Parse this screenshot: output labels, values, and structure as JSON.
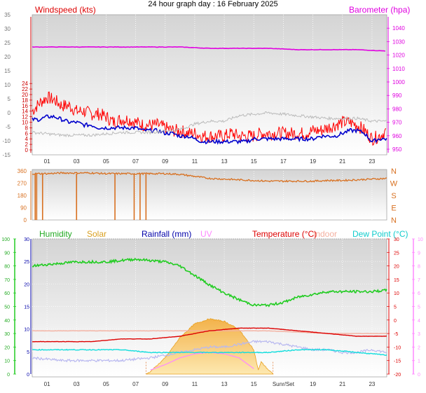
{
  "page_title": "24 hour graph day : 16 February 2025",
  "colors": {
    "wind_gust": "#ff0000",
    "wind_avg": "#0000cc",
    "barometer": "#e000e0",
    "gray_series": "#bbbbbb",
    "direction": "#d87020",
    "humidity": "#22cc22",
    "solar": "#e8a020",
    "rainfall": "#0000aa",
    "uv": "#ff88ff",
    "temperature": "#dd0000",
    "indoor": "#f4b0a0",
    "dewpoint": "#11dddd",
    "lavender": "#b8b8f0",
    "axis_text": "#000000"
  },
  "chart_data": [
    {
      "type": "line",
      "title": "",
      "y_left_label": "Windspeed (kts)",
      "y_right_label": "Barometer (hpa)",
      "x_ticks": [
        "01",
        "03",
        "05",
        "07",
        "09",
        "11",
        "13",
        "15",
        "17",
        "19",
        "21",
        "23"
      ],
      "x_range_hours": [
        0,
        24
      ],
      "y_left_ticks": [
        "-15",
        "-10",
        "-5",
        "0",
        "5",
        "10",
        "15",
        "20",
        "25",
        "30",
        "35"
      ],
      "y_left_inner_ticks": [
        "0",
        "2",
        "4",
        "6",
        "8",
        "10",
        "12",
        "14",
        "16",
        "18",
        "20",
        "22",
        "24"
      ],
      "y_right_ticks": [
        "950",
        "960",
        "970",
        "980",
        "990",
        "1000",
        "1010",
        "1020",
        "1030",
        "1040"
      ],
      "series": [
        {
          "name": "Windspeed (kts)",
          "kind": "gust",
          "x": [
            0,
            0.5,
            1,
            1.5,
            2,
            2.5,
            3,
            3.5,
            4,
            4.5,
            5,
            5.5,
            6,
            6.5,
            7,
            7.5,
            8,
            8.5,
            9,
            9.5,
            10,
            10.5,
            11,
            11.5,
            12,
            12.5,
            13,
            13.5,
            14,
            14.5,
            15,
            15.5,
            16,
            16.5,
            17,
            17.5,
            18,
            18.5,
            19,
            19.5,
            20,
            20.5,
            21,
            21.5,
            22,
            22.5,
            23,
            23.5,
            24
          ],
          "y": [
            14,
            17,
            19,
            18,
            16,
            16,
            14,
            14,
            13,
            13,
            12,
            10,
            11,
            11,
            10,
            9,
            9,
            9,
            8,
            7,
            7,
            6,
            6,
            5,
            5,
            5,
            5,
            6,
            5,
            5,
            5,
            6,
            6,
            6,
            6,
            6,
            6,
            6,
            7,
            7,
            8,
            9,
            10,
            10,
            9,
            7,
            4,
            5,
            7
          ]
        },
        {
          "name": "Wind average",
          "kind": "avg",
          "x": [
            0,
            0.5,
            1,
            1.5,
            2,
            2.5,
            3,
            3.5,
            4,
            4.5,
            5,
            5.5,
            6,
            6.5,
            7,
            7.5,
            8,
            8.5,
            9,
            9.5,
            10,
            10.5,
            11,
            11.5,
            12,
            12.5,
            13,
            13.5,
            14,
            14.5,
            15,
            15.5,
            16,
            16.5,
            17,
            17.5,
            18,
            18.5,
            19,
            19.5,
            20,
            20.5,
            21,
            21.5,
            22,
            22.5,
            23,
            23.5,
            24
          ],
          "y": [
            11,
            11,
            12,
            12,
            11,
            10,
            10,
            9,
            9,
            8,
            8,
            8,
            8,
            8,
            8,
            7,
            7,
            7,
            6,
            6,
            5,
            5,
            4,
            3,
            3,
            3,
            3,
            3,
            3,
            3,
            4,
            4,
            4,
            4,
            4,
            4,
            4,
            4,
            4,
            5,
            5,
            5,
            6,
            7,
            7,
            6,
            3,
            4,
            4
          ]
        },
        {
          "name": "Barometer (hpa)",
          "kind": "baro",
          "x": [
            0,
            2,
            4,
            6,
            8,
            10,
            12,
            14,
            16,
            18,
            20,
            22,
            24
          ],
          "y": [
            1026,
            1026,
            1026,
            1026,
            1026,
            1026,
            1025,
            1025,
            1025,
            1024,
            1024,
            1024,
            1023
          ]
        },
        {
          "name": "Gray trace",
          "kind": "gray",
          "x": [
            0,
            2,
            4,
            6,
            8,
            10,
            11,
            12,
            13,
            14,
            16,
            18,
            20,
            21,
            22,
            23,
            24
          ],
          "y": [
            -7,
            -8,
            -8,
            -7,
            -7,
            -6,
            -4,
            -3,
            -3,
            -1,
            0,
            -1,
            -2,
            -2,
            -2,
            -3,
            -3
          ]
        }
      ]
    },
    {
      "type": "line",
      "title": "",
      "y_left_ticks": [
        "0",
        "90",
        "180",
        "270",
        "360"
      ],
      "y_right_ticks": [
        "N",
        "E",
        "S",
        "W",
        "N"
      ],
      "x_range_hours": [
        0,
        24
      ],
      "series": [
        {
          "name": "Direction",
          "kind": "dir",
          "x": [
            0,
            1,
            2,
            3,
            4,
            5,
            6,
            7,
            8,
            9,
            10,
            11,
            12,
            13,
            14,
            15,
            16,
            17,
            18,
            19,
            20,
            21,
            22,
            23,
            24
          ],
          "y": [
            340,
            340,
            345,
            345,
            345,
            340,
            340,
            340,
            340,
            340,
            335,
            320,
            305,
            300,
            295,
            290,
            285,
            285,
            285,
            285,
            290,
            290,
            295,
            300,
            305
          ]
        }
      ],
      "drops_hours": [
        0.2,
        0.3,
        0.7,
        3.0,
        5.6,
        6.9,
        7.3,
        7.7
      ]
    },
    {
      "type": "line",
      "title": "",
      "legend": [
        "Humidity",
        "Solar",
        "Rainfall (mm)",
        "UV",
        "Temperature (°C)",
        "Indoor",
        "Dew Point (°C)"
      ],
      "x_ticks": [
        "01",
        "03",
        "05",
        "07",
        "09",
        "11",
        "13",
        "15",
        "Sunr/Set",
        "19",
        "21",
        "23"
      ],
      "x_range_hours": [
        0,
        24
      ],
      "y_humidity_ticks": [
        "0",
        "10",
        "20",
        "30",
        "40",
        "50",
        "60",
        "70",
        "80",
        "90",
        "100"
      ],
      "y_rain_ticks": [
        "0",
        "5",
        "10",
        "15",
        "20",
        "25",
        "30"
      ],
      "y_temp_ticks": [
        "-20",
        "-15",
        "-10",
        "-5",
        "0",
        "5",
        "10",
        "15",
        "20",
        "25",
        "30"
      ],
      "y_uv_ticks": [
        "0",
        "1",
        "2",
        "3",
        "4",
        "5",
        "6",
        "7",
        "8",
        "9",
        "10"
      ],
      "series": [
        {
          "name": "Humidity",
          "unit": "%",
          "x": [
            0,
            1,
            2,
            3,
            4,
            5,
            6,
            7,
            8,
            9,
            10,
            11,
            12,
            13,
            14,
            15,
            16,
            17,
            18,
            19,
            20,
            21,
            22,
            23,
            24
          ],
          "y": [
            80,
            81,
            82,
            83,
            83,
            83,
            84,
            85,
            84,
            83,
            80,
            73,
            66,
            60,
            55,
            51,
            51,
            53,
            57,
            59,
            61,
            61,
            61,
            61,
            62
          ]
        },
        {
          "name": "Temperature (°C)",
          "unit": "°C",
          "x": [
            0,
            2,
            4,
            6,
            8,
            10,
            12,
            14,
            16,
            18,
            20,
            22,
            24
          ],
          "y": [
            -8,
            -8,
            -8,
            -7,
            -7,
            -6,
            -4,
            -3,
            -3,
            -4,
            -5,
            -6,
            -6
          ]
        },
        {
          "name": "Indoor",
          "unit": "°C",
          "x": [
            0,
            4,
            8,
            12,
            16,
            20,
            24
          ],
          "y": [
            -4,
            -4,
            -4,
            -4,
            -4,
            -5,
            -5
          ]
        },
        {
          "name": "Dew Point (°C)",
          "unit": "°C",
          "x": [
            0,
            2,
            4,
            6,
            8,
            10,
            12,
            14,
            16,
            18,
            20,
            22,
            24
          ],
          "y": [
            -11,
            -11,
            -11,
            -11,
            -12,
            -12,
            -12,
            -12,
            -12,
            -11,
            -11,
            -12,
            -13
          ]
        },
        {
          "name": "Lavender trace",
          "unit": "°C",
          "x": [
            0,
            2,
            4,
            6,
            8,
            10,
            11,
            12,
            13,
            14,
            15,
            16,
            17,
            18,
            19,
            20,
            21,
            22,
            23,
            24
          ],
          "y": [
            -14,
            -15,
            -15,
            -15,
            -14,
            -12,
            -11,
            -10,
            -10,
            -9,
            -8,
            -8,
            -9,
            -10,
            -11,
            -11,
            -12,
            -12,
            -11,
            -12
          ]
        },
        {
          "name": "Solar",
          "unit": "rel",
          "x": [
            7.7,
            8,
            9,
            10,
            11,
            12,
            13,
            14,
            15,
            15.3,
            15.5,
            16,
            16.3
          ],
          "y": [
            0,
            0.03,
            0.2,
            0.45,
            0.62,
            0.68,
            0.65,
            0.55,
            0.3,
            0.05,
            0.15,
            0.05,
            0
          ]
        },
        {
          "name": "UV",
          "unit": "idx",
          "x": [
            8,
            9,
            10,
            11,
            12,
            13,
            14,
            15
          ],
          "y": [
            0.3,
            0.7,
            1.2,
            1.5,
            1.6,
            1.5,
            1.2,
            0.4
          ]
        }
      ]
    }
  ]
}
